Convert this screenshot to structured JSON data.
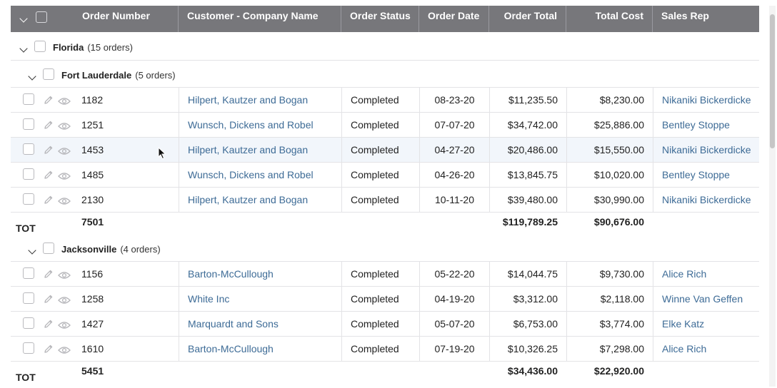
{
  "columns": [
    {
      "key": "order_number",
      "label": "Order Number"
    },
    {
      "key": "customer",
      "label": "Customer - Company Name"
    },
    {
      "key": "status",
      "label": "Order Status"
    },
    {
      "key": "date",
      "label": "Order Date"
    },
    {
      "key": "total",
      "label": "Order Total"
    },
    {
      "key": "cost",
      "label": "Total Cost"
    },
    {
      "key": "rep",
      "label": "Sales Rep"
    }
  ],
  "groups": [
    {
      "label": "Florida",
      "count": "(15 orders)",
      "subgroups": [
        {
          "label": "Fort Lauderdale",
          "count": "(5 orders)",
          "rows": [
            {
              "order_number": "1182",
              "customer": "Hilpert, Kautzer and Bogan",
              "status": "Completed",
              "date": "08-23-20",
              "total": "$11,235.50",
              "cost": "$8,230.00",
              "rep": "Nikaniki Bickerdicke"
            },
            {
              "order_number": "1251",
              "customer": "Wunsch, Dickens and Robel",
              "status": "Completed",
              "date": "07-07-20",
              "total": "$34,742.00",
              "cost": "$25,886.00",
              "rep": "Bentley Stoppe"
            },
            {
              "order_number": "1453",
              "customer": "Hilpert, Kautzer and Bogan",
              "status": "Completed",
              "date": "04-27-20",
              "total": "$20,486.00",
              "cost": "$15,550.00",
              "rep": "Nikaniki Bickerdicke"
            },
            {
              "order_number": "1485",
              "customer": "Wunsch, Dickens and Robel",
              "status": "Completed",
              "date": "04-26-20",
              "total": "$13,845.75",
              "cost": "$10,020.00",
              "rep": "Bentley Stoppe"
            },
            {
              "order_number": "2130",
              "customer": "Hilpert, Kautzer and Bogan",
              "status": "Completed",
              "date": "10-11-20",
              "total": "$39,480.00",
              "cost": "$30,990.00",
              "rep": "Nikaniki Bickerdicke"
            }
          ],
          "totals": {
            "label": "TOT",
            "order_number": "7501",
            "total": "$119,789.25",
            "cost": "$90,676.00"
          }
        },
        {
          "label": "Jacksonville",
          "count": "(4 orders)",
          "rows": [
            {
              "order_number": "1156",
              "customer": "Barton-McCullough",
              "status": "Completed",
              "date": "05-22-20",
              "total": "$14,044.75",
              "cost": "$9,730.00",
              "rep": "Alice Rich"
            },
            {
              "order_number": "1258",
              "customer": "White Inc",
              "status": "Completed",
              "date": "04-19-20",
              "total": "$3,312.00",
              "cost": "$2,118.00",
              "rep": "Winne Van Geffen"
            },
            {
              "order_number": "1427",
              "customer": "Marquardt and Sons",
              "status": "Completed",
              "date": "05-07-20",
              "total": "$6,753.00",
              "cost": "$3,774.00",
              "rep": "Elke Katz"
            },
            {
              "order_number": "1610",
              "customer": "Barton-McCullough",
              "status": "Completed",
              "date": "07-19-20",
              "total": "$10,326.25",
              "cost": "$7,298.00",
              "rep": "Alice Rich"
            }
          ],
          "totals": {
            "label": "TOT",
            "order_number": "5451",
            "total": "$34,436.00",
            "cost": "$22,920.00"
          }
        }
      ]
    }
  ],
  "colors": {
    "header_bg": "#77777b",
    "link": "#3d6b96",
    "hover_row": "#f2f6fb"
  },
  "icons": {
    "edit": "pencil-icon",
    "view": "eye-icon",
    "expand": "chevron-down-icon"
  }
}
